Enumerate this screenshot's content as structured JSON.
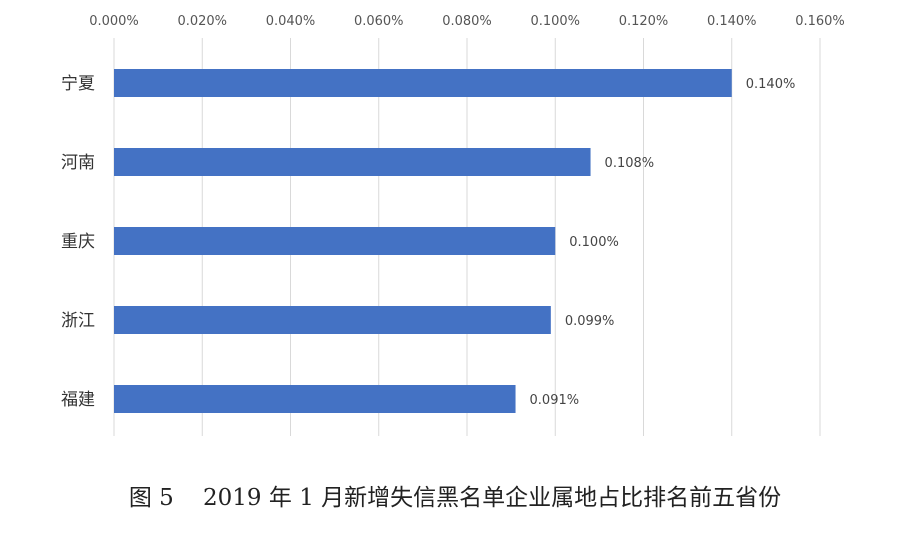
{
  "caption": "图 5    2019 年 1 月新增失信黑名单企业属地占比排名前五省份",
  "chart_data": {
    "type": "bar",
    "orientation": "horizontal",
    "categories": [
      "宁夏",
      "河南",
      "重庆",
      "浙江",
      "福建"
    ],
    "values": [
      0.14,
      0.108,
      0.1,
      0.099,
      0.091
    ],
    "data_labels": [
      "0.140%",
      "0.108%",
      "0.100%",
      "0.099%",
      "0.091%"
    ],
    "x_ticks": [
      "0.000%",
      "0.020%",
      "0.040%",
      "0.060%",
      "0.080%",
      "0.100%",
      "0.120%",
      "0.140%",
      "0.160%"
    ],
    "xlim": [
      0,
      0.16
    ],
    "x_axis_position": "top",
    "grid": true,
    "bar_color": "#4472C4",
    "grid_color": "#d9d9d9"
  }
}
